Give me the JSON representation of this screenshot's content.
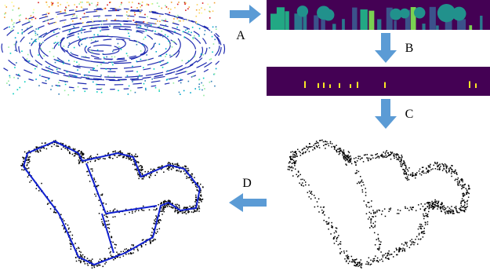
{
  "steps": [
    {
      "label": "A"
    },
    {
      "label": "B"
    },
    {
      "label": "C"
    },
    {
      "label": "D"
    }
  ]
}
